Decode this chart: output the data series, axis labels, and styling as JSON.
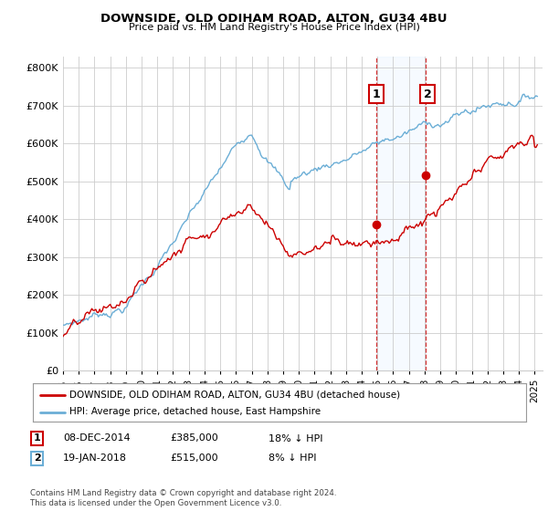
{
  "title": "DOWNSIDE, OLD ODIHAM ROAD, ALTON, GU34 4BU",
  "subtitle": "Price paid vs. HM Land Registry's House Price Index (HPI)",
  "ylabel_ticks": [
    "£0",
    "£100K",
    "£200K",
    "£300K",
    "£400K",
    "£500K",
    "£600K",
    "£700K",
    "£800K"
  ],
  "ytick_values": [
    0,
    100000,
    200000,
    300000,
    400000,
    500000,
    600000,
    700000,
    800000
  ],
  "ylim": [
    0,
    830000
  ],
  "xlim_start": 1995.0,
  "xlim_end": 2025.5,
  "hpi_color": "#6baed6",
  "price_color": "#cc0000",
  "sale1_year": 2014.93,
  "sale1_price": 385000,
  "sale2_year": 2018.05,
  "sale2_price": 515000,
  "legend_line1": "DOWNSIDE, OLD ODIHAM ROAD, ALTON, GU34 4BU (detached house)",
  "legend_line2": "HPI: Average price, detached house, East Hampshire",
  "table_row1": [
    "1",
    "08-DEC-2014",
    "£385,000",
    "18% ↓ HPI"
  ],
  "table_row2": [
    "2",
    "19-JAN-2018",
    "£515,000",
    "8% ↓ HPI"
  ],
  "footnote": "Contains HM Land Registry data © Crown copyright and database right 2024.\nThis data is licensed under the Open Government Licence v3.0.",
  "background_color": "#ffffff",
  "grid_color": "#cccccc",
  "shade_color": "#ddeeff"
}
